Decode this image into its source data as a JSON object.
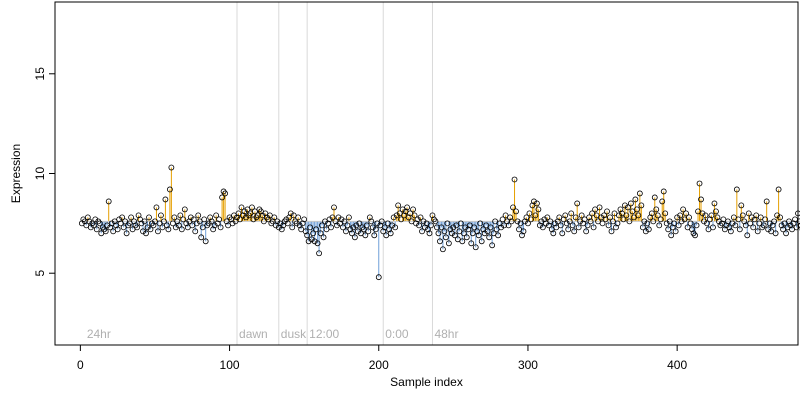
{
  "chart_data": {
    "type": "scatter",
    "xlabel": "Sample index",
    "ylabel": "Expression",
    "xlim": [
      -17,
      481
    ],
    "ylim": [
      1.4,
      18.6
    ],
    "xticks": [
      0,
      100,
      200,
      300,
      400
    ],
    "yticks": [
      5,
      10,
      15
    ],
    "baseline": 7.6,
    "colors": {
      "above": "#E69F00",
      "below": "#6F9FD8",
      "point_stroke": "#000000",
      "vline": "#d9d9d9",
      "annotation": "#b0b0b0"
    },
    "annotations": [
      {
        "x": 3,
        "label": "24hr",
        "line": false
      },
      {
        "x": 105,
        "label": "dawn",
        "line": true
      },
      {
        "x": 133,
        "label": "dusk",
        "line": true
      },
      {
        "x": 152,
        "label": "12:00",
        "line": true
      },
      {
        "x": 203,
        "label": "0:00",
        "line": true
      },
      {
        "x": 236,
        "label": "48hr",
        "line": true
      }
    ],
    "series": [
      {
        "values": [
          7.5,
          7.7,
          7.6,
          7.4,
          7.8,
          7.6,
          7.3,
          7.5,
          7.4,
          7.7,
          7.2,
          7.6,
          7.5,
          7.0,
          7.3,
          7.2,
          7.1,
          7.4,
          8.6,
          7.3,
          7.5,
          7.1,
          7.6,
          7.4,
          7.2,
          7.7,
          7.5,
          7.8,
          7.3,
          7.6,
          7.0,
          7.4,
          7.5,
          7.8,
          7.2,
          7.6,
          7.4,
          7.3,
          7.9,
          7.7,
          7.5,
          7.1,
          7.6,
          7.0,
          7.3,
          7.8,
          7.2,
          7.5,
          7.4,
          7.6,
          8.3,
          7.1,
          7.5,
          7.9,
          7.3,
          7.6,
          8.7,
          7.4,
          7.2,
          9.2,
          10.3,
          7.5,
          7.8,
          7.3,
          7.6,
          7.4,
          7.9,
          7.2,
          7.7,
          8.2,
          7.5,
          7.3,
          7.6,
          7.8,
          7.4,
          7.7,
          7.1,
          7.5,
          7.9,
          7.6,
          6.8,
          7.3,
          7.7,
          6.6,
          7.4,
          7.5,
          7.8,
          7.6,
          7.2,
          7.4,
          7.9,
          7.5,
          7.7,
          7.3,
          8.8,
          9.1,
          9.0,
          7.6,
          7.4,
          7.8,
          7.7,
          7.5,
          7.9,
          7.6,
          7.8,
          8.0,
          7.7,
          8.3,
          7.9,
          8.1,
          7.8,
          8.2,
          7.9,
          8.0,
          8.3,
          7.7,
          8.1,
          7.8,
          7.9,
          8.2,
          8.1,
          7.9,
          7.6,
          8.0,
          7.8,
          7.7,
          7.9,
          7.5,
          7.6,
          7.8,
          7.4,
          7.6,
          7.3,
          7.5,
          7.2,
          7.4,
          7.6,
          7.7,
          7.5,
          7.8,
          8.0,
          7.3,
          7.9,
          7.6,
          7.5,
          7.8,
          7.4,
          7.2,
          7.5,
          7.7,
          7.1,
          6.9,
          6.6,
          7.3,
          6.7,
          7.0,
          6.6,
          7.2,
          6.5,
          6.0,
          7.0,
          7.4,
          6.8,
          7.6,
          7.2,
          7.5,
          7.7,
          7.3,
          7.8,
          8.3,
          7.6,
          7.4,
          7.8,
          7.5,
          7.7,
          7.3,
          7.6,
          7.1,
          7.4,
          7.8,
          7.2,
          7.0,
          7.3,
          6.8,
          7.4,
          7.1,
          7.5,
          7.0,
          7.3,
          7.2,
          6.9,
          7.4,
          7.1,
          7.8,
          7.6,
          7.3,
          6.9,
          7.2,
          7.5,
          4.8,
          7.4,
          7.6,
          7.1,
          7.3,
          6.9,
          7.5,
          7.2,
          7.0,
          7.4,
          7.8,
          7.3,
          7.9,
          8.4,
          8.0,
          7.7,
          8.2,
          7.9,
          8.1,
          8.3,
          7.8,
          8.0,
          7.6,
          8.2,
          7.9,
          7.5,
          7.7,
          7.4,
          7.8,
          7.1,
          7.6,
          7.3,
          7.5,
          7.2,
          7.0,
          7.4,
          7.9,
          7.7,
          7.6,
          7.3,
          7.0,
          6.6,
          7.3,
          6.2,
          7.1,
          6.8,
          7.5,
          6.5,
          7.2,
          7.0,
          7.3,
          6.9,
          7.4,
          6.7,
          7.1,
          7.5,
          6.6,
          7.0,
          7.3,
          6.8,
          7.2,
          7.4,
          6.5,
          7.0,
          7.3,
          6.3,
          7.1,
          6.9,
          7.5,
          6.6,
          7.2,
          7.0,
          7.4,
          7.1,
          6.8,
          7.3,
          6.4,
          7.0,
          7.6,
          7.2,
          6.9,
          7.5,
          7.3,
          7.7,
          7.4,
          7.9,
          7.6,
          7.4,
          7.8,
          7.6,
          8.3,
          9.7,
          8.1,
          7.6,
          7.2,
          7.5,
          6.9,
          7.1,
          7.6,
          7.8,
          7.5,
          8.0,
          7.7,
          8.4,
          8.6,
          7.9,
          8.5,
          8.2,
          7.4,
          7.6,
          7.3,
          7.7,
          7.5,
          7.8,
          7.4,
          7.6,
          7.2,
          7.0,
          7.5,
          7.3,
          7.6,
          7.8,
          7.4,
          7.0,
          7.7,
          7.9,
          7.5,
          7.2,
          7.6,
          8.0,
          7.4,
          7.1,
          7.8,
          8.5,
          7.3,
          7.6,
          7.9,
          7.5,
          7.7,
          7.1,
          7.4,
          7.8,
          7.6,
          8.0,
          7.3,
          8.2,
          7.9,
          7.6,
          8.3,
          7.8,
          7.5,
          7.9,
          7.7,
          8.1,
          7.4,
          7.8,
          7.1,
          7.6,
          8.0,
          7.3,
          7.5,
          7.9,
          8.2,
          8.0,
          7.7,
          8.4,
          7.9,
          8.3,
          7.6,
          8.5,
          8.1,
          7.8,
          8.7,
          8.2,
          7.9,
          9.0,
          8.4,
          7.3,
          7.6,
          7.1,
          7.5,
          7.2,
          7.8,
          8.0,
          7.6,
          8.8,
          8.2,
          7.9,
          7.4,
          7.7,
          8.6,
          9.1,
          8.0,
          7.5,
          7.2,
          7.6,
          6.9,
          7.3,
          7.5,
          7.1,
          7.8,
          7.4,
          7.9,
          7.6,
          8.2,
          7.7,
          8.0,
          7.3,
          7.8,
          7.5,
          7.2,
          7.0,
          6.9,
          7.4,
          8.1,
          9.5,
          8.7,
          8.0,
          7.6,
          7.9,
          7.5,
          7.2,
          7.7,
          7.9,
          7.3,
          8.5,
          8.1,
          7.8,
          7.6,
          7.4,
          7.5,
          7.7,
          7.2,
          7.4,
          7.6,
          7.3,
          7.1,
          7.5,
          7.8,
          7.4,
          9.2,
          7.7,
          7.2,
          8.4,
          7.9,
          7.6,
          7.4,
          6.9,
          8.0,
          7.5,
          7.8,
          7.3,
          7.7,
          7.9,
          7.1,
          7.5,
          7.8,
          7.3,
          7.4,
          7.7,
          8.6,
          7.2,
          7.5,
          7.1,
          7.4,
          7.6,
          7.0,
          7.9,
          9.2,
          7.8,
          7.4,
          7.2,
          7.5,
          7.0,
          7.3,
          7.6,
          7.4,
          7.2,
          7.5,
          7.7,
          7.3,
          8.0,
          7.6,
          7.4,
          7.2
        ]
      }
    ]
  }
}
